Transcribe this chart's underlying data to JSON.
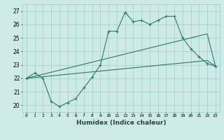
{
  "xlabel": "Humidex (Indice chaleur)",
  "x_values": [
    0,
    1,
    2,
    3,
    4,
    5,
    6,
    7,
    8,
    9,
    10,
    11,
    12,
    13,
    14,
    15,
    16,
    17,
    18,
    19,
    20,
    21,
    22,
    23
  ],
  "line1_y": [
    22.0,
    22.4,
    22.0,
    20.3,
    19.9,
    20.2,
    20.5,
    21.3,
    22.1,
    23.0,
    25.5,
    25.5,
    26.9,
    26.2,
    26.3,
    26.0,
    26.3,
    26.6,
    26.6,
    25.0,
    24.2,
    23.6,
    23.1,
    22.9
  ],
  "line2_y": [
    22.0,
    22.15,
    22.3,
    22.45,
    22.6,
    22.75,
    22.9,
    23.05,
    23.2,
    23.35,
    23.5,
    23.65,
    23.8,
    23.95,
    24.1,
    24.25,
    24.4,
    24.55,
    24.7,
    24.85,
    25.0,
    25.15,
    25.3,
    22.9
  ],
  "line3_y": [
    22.0,
    22.06,
    22.12,
    22.18,
    22.24,
    22.3,
    22.36,
    22.42,
    22.48,
    22.54,
    22.6,
    22.66,
    22.72,
    22.78,
    22.84,
    22.9,
    22.96,
    23.02,
    23.08,
    23.14,
    23.2,
    23.26,
    23.32,
    22.9
  ],
  "line_color": "#2a7a6a",
  "bg_color": "#ceeae8",
  "grid_color": "#9ecfca",
  "ylim": [
    19.5,
    27.5
  ],
  "yticks": [
    20,
    21,
    22,
    23,
    24,
    25,
    26,
    27
  ],
  "xlim": [
    -0.5,
    23.5
  ],
  "xtick_fontsize": 4.5,
  "ytick_fontsize": 5.5,
  "xlabel_fontsize": 6.5
}
